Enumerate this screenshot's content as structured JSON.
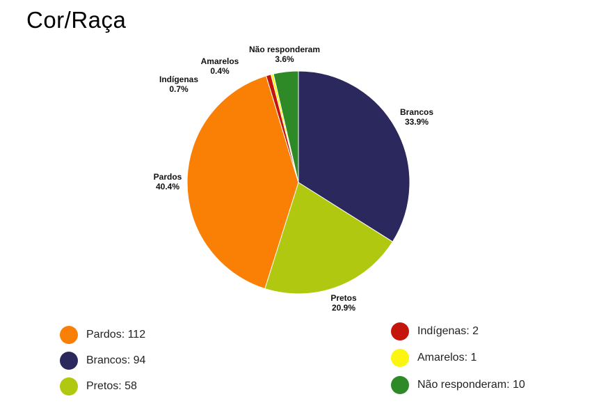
{
  "title": "Cor/Raça",
  "chart_data": {
    "type": "pie",
    "title": "Cor/Raça",
    "slices": [
      {
        "name": "Brancos",
        "value": 94,
        "percent_label": "33.9%",
        "color": "#2b285e"
      },
      {
        "name": "Pretos",
        "value": 58,
        "percent_label": "20.9%",
        "color": "#b0c80f"
      },
      {
        "name": "Pardos",
        "value": 112,
        "percent_label": "40.4%",
        "color": "#f97f05"
      },
      {
        "name": "Indígenas",
        "value": 2,
        "percent_label": "0.7%",
        "color": "#c4150c"
      },
      {
        "name": "Amarelos",
        "value": 1,
        "percent_label": "0.4%",
        "color": "#fbf50f"
      },
      {
        "name": "Não responderam",
        "value": 10,
        "percent_label": "3.6%",
        "color": "#2e8a26"
      }
    ],
    "legend": {
      "placement": "bottom",
      "items": [
        {
          "label": "Pardos: 112",
          "color": "#f97f05"
        },
        {
          "label": "Brancos: 94",
          "color": "#2b285e"
        },
        {
          "label": "Pretos: 58",
          "color": "#b0c80f"
        },
        {
          "label": "Indígenas: 2",
          "color": "#c4150c"
        },
        {
          "label": "Amarelos: 1",
          "color": "#fbf50f"
        },
        {
          "label": "Não responderam: 10",
          "color": "#2e8a26"
        }
      ]
    }
  }
}
